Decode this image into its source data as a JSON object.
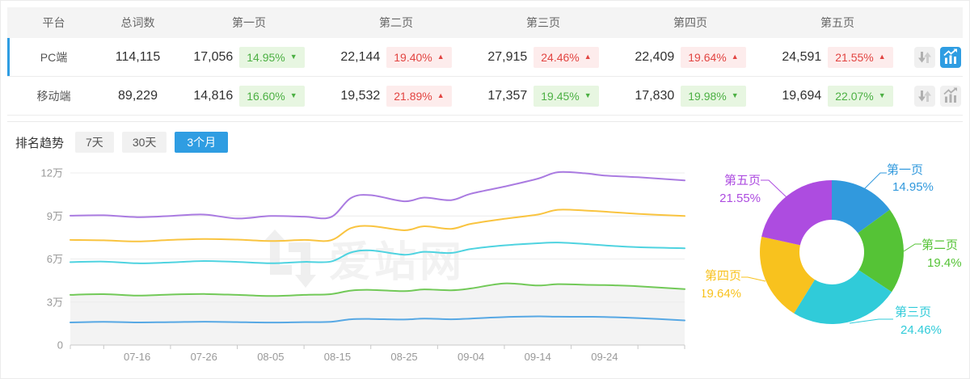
{
  "colors": {
    "accent_blue": "#2f9de2",
    "badge_up_red": "#e24441",
    "badge_up_bg": "#fdecec",
    "badge_down_green": "#4cb043",
    "badge_down_bg": "#e7f6e1",
    "header_bg": "#f4f4f4",
    "axis_text": "#999999",
    "grid_line": "#ececec"
  },
  "table": {
    "headers": [
      "平台",
      "总词数",
      "第一页",
      "第二页",
      "第三页",
      "第四页",
      "第五页"
    ],
    "icon_buttons": [
      "sort-arrows-icon",
      "trend-chart-icon"
    ],
    "rows": [
      {
        "platform": "PC端",
        "total": "114,115",
        "selected": true,
        "pages": [
          {
            "value": "17,056",
            "change": "14.95%",
            "dir": "down"
          },
          {
            "value": "22,144",
            "change": "19.40%",
            "dir": "up"
          },
          {
            "value": "27,915",
            "change": "24.46%",
            "dir": "up"
          },
          {
            "value": "22,409",
            "change": "19.64%",
            "dir": "up"
          },
          {
            "value": "24,591",
            "change": "21.55%",
            "dir": "up"
          }
        ],
        "icons": {
          "sort_active": false,
          "chart_active": true
        }
      },
      {
        "platform": "移动端",
        "total": "89,229",
        "selected": false,
        "pages": [
          {
            "value": "14,816",
            "change": "16.60%",
            "dir": "down"
          },
          {
            "value": "19,532",
            "change": "21.89%",
            "dir": "up"
          },
          {
            "value": "17,357",
            "change": "19.45%",
            "dir": "down"
          },
          {
            "value": "17,830",
            "change": "19.98%",
            "dir": "down"
          },
          {
            "value": "19,694",
            "change": "22.07%",
            "dir": "down"
          }
        ],
        "icons": {
          "sort_active": false,
          "chart_active": false
        }
      }
    ]
  },
  "trend": {
    "label": "排名趋势",
    "tabs": [
      {
        "label": "7天",
        "active": false
      },
      {
        "label": "30天",
        "active": false
      },
      {
        "label": "3个月",
        "active": true
      }
    ]
  },
  "watermark": "爱站网",
  "chart_data": [
    {
      "type": "line",
      "title": "排名趋势 3个月 (PC端, stacked cumulative keyword counts)",
      "stacked_cumulative": true,
      "x_labels": [
        "07-16",
        "07-26",
        "08-05",
        "08-15",
        "08-25",
        "09-04",
        "09-14",
        "09-24"
      ],
      "x_label_days": [
        10,
        20,
        30,
        40,
        50,
        60,
        70,
        80
      ],
      "tick_days": [
        0,
        5,
        15,
        25,
        35,
        45,
        55,
        65,
        75,
        85,
        92
      ],
      "x_range_days": [
        0,
        92
      ],
      "y_ticks": [
        "0",
        "3万",
        "6万",
        "9万",
        "12万"
      ],
      "y_tick_values_wan": [
        0,
        3,
        6,
        9,
        12
      ],
      "ylim_wan": [
        0,
        12
      ],
      "grid": true,
      "x_days": [
        0,
        5,
        10,
        15,
        20,
        25,
        30,
        35,
        39,
        42,
        45,
        50,
        53,
        57,
        60,
        65,
        70,
        73,
        77,
        80,
        85,
        92
      ],
      "series": [
        {
          "name": "第一页",
          "color": "#57a8e4",
          "area": false,
          "values_wan": [
            1.58,
            1.62,
            1.58,
            1.6,
            1.63,
            1.6,
            1.57,
            1.6,
            1.62,
            1.8,
            1.82,
            1.78,
            1.85,
            1.8,
            1.85,
            1.95,
            2.0,
            1.98,
            1.97,
            1.96,
            1.88,
            1.72
          ]
        },
        {
          "name": "第二页",
          "color": "#72c958",
          "area": true,
          "values_wan": [
            3.5,
            3.55,
            3.45,
            3.52,
            3.56,
            3.5,
            3.42,
            3.5,
            3.55,
            3.8,
            3.85,
            3.76,
            3.88,
            3.82,
            3.95,
            4.3,
            4.15,
            4.25,
            4.2,
            4.18,
            4.1,
            3.9
          ]
        },
        {
          "name": "第三页",
          "color": "#4fd3e0",
          "area": false,
          "values_wan": [
            5.78,
            5.82,
            5.7,
            5.76,
            5.86,
            5.8,
            5.7,
            5.8,
            5.82,
            6.45,
            6.6,
            6.3,
            6.5,
            6.42,
            6.7,
            6.95,
            7.1,
            7.15,
            7.05,
            6.95,
            6.82,
            6.75
          ]
        },
        {
          "name": "第四页",
          "color": "#f9c440",
          "area": false,
          "values_wan": [
            7.33,
            7.3,
            7.22,
            7.33,
            7.4,
            7.35,
            7.25,
            7.33,
            7.3,
            8.15,
            8.3,
            8.0,
            8.28,
            8.1,
            8.45,
            8.8,
            9.1,
            9.43,
            9.38,
            9.3,
            9.15,
            9.0
          ]
        },
        {
          "name": "第五页",
          "color": "#aa7be1",
          "area": false,
          "values_wan": [
            9.02,
            9.05,
            8.92,
            9.0,
            9.1,
            8.82,
            9.0,
            8.95,
            8.92,
            10.25,
            10.45,
            10.02,
            10.28,
            10.1,
            10.55,
            11.05,
            11.6,
            12.05,
            11.98,
            11.82,
            11.7,
            11.48
          ]
        }
      ]
    },
    {
      "type": "pie",
      "donut": true,
      "title": "PC端关键词页面分布",
      "slices": [
        {
          "label": "第一页",
          "value": 14.95,
          "pct_label": "14.95%",
          "color": "#3199dd"
        },
        {
          "label": "第二页",
          "value": 19.4,
          "pct_label": "19.4%",
          "color": "#55c336"
        },
        {
          "label": "第三页",
          "value": 24.46,
          "pct_label": "24.46%",
          "color": "#30cbd9"
        },
        {
          "label": "第四页",
          "value": 19.64,
          "pct_label": "19.64%",
          "color": "#f8c21e"
        },
        {
          "label": "第五页",
          "value": 21.55,
          "pct_label": "21.55%",
          "color": "#ad4ce0"
        }
      ]
    }
  ]
}
